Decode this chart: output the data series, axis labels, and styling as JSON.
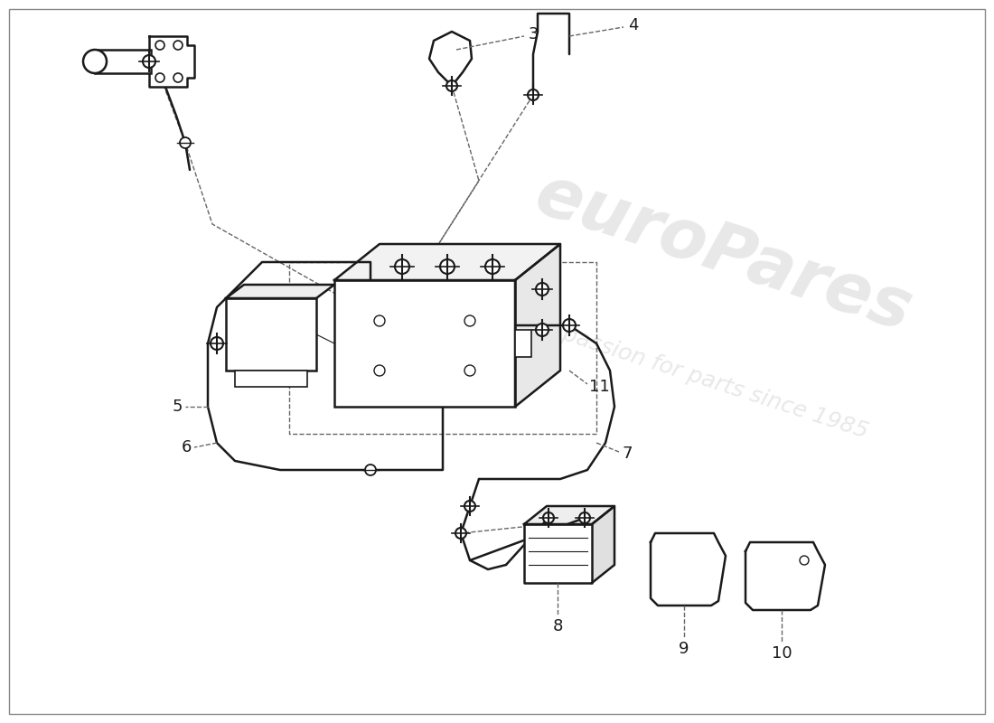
{
  "bg": "#ffffff",
  "lc": "#1a1a1a",
  "dc": "#666666",
  "wm1": "euroPares",
  "wm2": "a passion for parts since 1985",
  "figsize": [
    11.0,
    8.0
  ],
  "dpi": 100
}
